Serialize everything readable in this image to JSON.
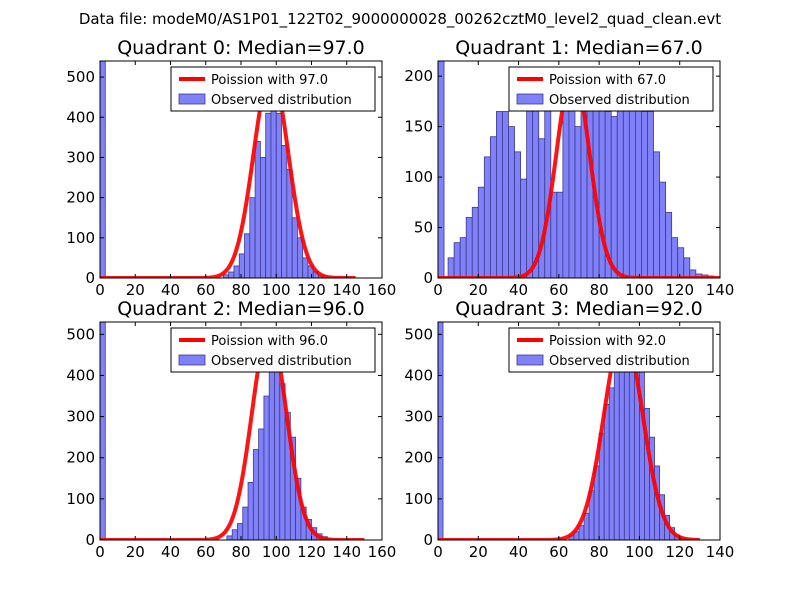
{
  "figure": {
    "title": "Data file: modeM0/AS1P01_122T02_9000000028_00262cztM0_level2_quad_clean.evt"
  },
  "colors": {
    "bar_fill": "#8080f8",
    "bar_edge": "#3b3b8f",
    "curve": "#ff0000",
    "background": "#ffffff"
  },
  "chart_data": [
    {
      "type": "bar",
      "title": "Quadrant 0: Median=97.0",
      "xlim": [
        0,
        160
      ],
      "ylim": [
        0,
        540
      ],
      "xticks": [
        0,
        20,
        40,
        60,
        80,
        100,
        120,
        140,
        160
      ],
      "yticks": [
        0,
        100,
        200,
        300,
        400,
        500
      ],
      "legend": {
        "placement": "top-right",
        "entries": [
          "Poission with 97.0",
          "Observed distribution"
        ]
      },
      "hist": {
        "bin_width": 3,
        "bins": [
          [
            0,
            540
          ],
          [
            70,
            8
          ],
          [
            73,
            15
          ],
          [
            76,
            30
          ],
          [
            79,
            60
          ],
          [
            82,
            110
          ],
          [
            85,
            200
          ],
          [
            88,
            340
          ],
          [
            91,
            300
          ],
          [
            94,
            410
          ],
          [
            97,
            420
          ],
          [
            100,
            410
          ],
          [
            103,
            330
          ],
          [
            106,
            270
          ],
          [
            109,
            150
          ],
          [
            112,
            100
          ],
          [
            115,
            50
          ],
          [
            118,
            30
          ],
          [
            121,
            15
          ],
          [
            124,
            5
          ]
        ]
      },
      "curve": {
        "label": "Poission with 97.0",
        "mean": 97.0,
        "peak": 512,
        "x_range": [
          0,
          145
        ]
      }
    },
    {
      "type": "bar",
      "title": "Quadrant 1: Median=67.0",
      "xlim": [
        0,
        140
      ],
      "ylim": [
        0,
        215
      ],
      "xticks": [
        0,
        20,
        40,
        60,
        80,
        100,
        120,
        140
      ],
      "yticks": [
        0,
        50,
        100,
        150,
        200
      ],
      "legend": {
        "placement": "top-right",
        "entries": [
          "Poission with 67.0",
          "Observed distribution"
        ]
      },
      "hist": {
        "bin_width": 3,
        "bins": [
          [
            0,
            215
          ],
          [
            5,
            20
          ],
          [
            8,
            35
          ],
          [
            11,
            40
          ],
          [
            14,
            60
          ],
          [
            17,
            70
          ],
          [
            20,
            90
          ],
          [
            23,
            120
          ],
          [
            26,
            140
          ],
          [
            29,
            165
          ],
          [
            32,
            165
          ],
          [
            35,
            150
          ],
          [
            38,
            125
          ],
          [
            41,
            98
          ],
          [
            44,
            175
          ],
          [
            47,
            180
          ],
          [
            50,
            138
          ],
          [
            53,
            180
          ],
          [
            56,
            85
          ],
          [
            59,
            85
          ],
          [
            62,
            185
          ],
          [
            65,
            180
          ],
          [
            68,
            150
          ],
          [
            71,
            180
          ],
          [
            74,
            195
          ],
          [
            77,
            178
          ],
          [
            80,
            168
          ],
          [
            83,
            165
          ],
          [
            86,
            160
          ],
          [
            89,
            185
          ],
          [
            92,
            195
          ],
          [
            95,
            205
          ],
          [
            98,
            190
          ],
          [
            101,
            165
          ],
          [
            104,
            165
          ],
          [
            107,
            125
          ],
          [
            110,
            95
          ],
          [
            113,
            65
          ],
          [
            116,
            40
          ],
          [
            119,
            30
          ],
          [
            122,
            20
          ],
          [
            125,
            8
          ],
          [
            128,
            4
          ],
          [
            131,
            3
          ],
          [
            134,
            2
          ]
        ]
      },
      "curve": {
        "label": "Poission with 67.0",
        "mean": 67.0,
        "peak": 205,
        "x_range": [
          0,
          140
        ]
      }
    },
    {
      "type": "bar",
      "title": "Quadrant 2: Median=96.0",
      "xlim": [
        0,
        160
      ],
      "ylim": [
        0,
        530
      ],
      "xticks": [
        0,
        20,
        40,
        60,
        80,
        100,
        120,
        140,
        160
      ],
      "yticks": [
        0,
        100,
        200,
        300,
        400,
        500
      ],
      "legend": {
        "placement": "top-right",
        "entries": [
          "Poission with 96.0",
          "Observed distribution"
        ]
      },
      "hist": {
        "bin_width": 3,
        "bins": [
          [
            0,
            530
          ],
          [
            72,
            10
          ],
          [
            75,
            25
          ],
          [
            78,
            40
          ],
          [
            81,
            80
          ],
          [
            84,
            140
          ],
          [
            87,
            220
          ],
          [
            90,
            270
          ],
          [
            93,
            350
          ],
          [
            96,
            460
          ],
          [
            99,
            430
          ],
          [
            102,
            380
          ],
          [
            105,
            310
          ],
          [
            108,
            250
          ],
          [
            111,
            150
          ],
          [
            114,
            80
          ],
          [
            117,
            50
          ],
          [
            120,
            30
          ],
          [
            123,
            15
          ],
          [
            126,
            8
          ],
          [
            129,
            3
          ]
        ]
      },
      "curve": {
        "label": "Poission with 96.0",
        "mean": 96.0,
        "peak": 510,
        "x_range": [
          0,
          150
        ]
      }
    },
    {
      "type": "bar",
      "title": "Quadrant 3: Median=92.0",
      "xlim": [
        0,
        140
      ],
      "ylim": [
        0,
        530
      ],
      "xticks": [
        0,
        20,
        40,
        60,
        80,
        100,
        120,
        140
      ],
      "yticks": [
        0,
        100,
        200,
        300,
        400,
        500
      ],
      "legend": {
        "placement": "top-right",
        "entries": [
          "Poission with 92.0",
          "Observed distribution"
        ]
      },
      "hist": {
        "bin_width": 2.5,
        "bins": [
          [
            0,
            530
          ],
          [
            65,
            10
          ],
          [
            67.5,
            20
          ],
          [
            70,
            35
          ],
          [
            72.5,
            65
          ],
          [
            75,
            120
          ],
          [
            77.5,
            180
          ],
          [
            80,
            260
          ],
          [
            82.5,
            330
          ],
          [
            85,
            370
          ],
          [
            87.5,
            410
          ],
          [
            90,
            440
          ],
          [
            92.5,
            470
          ],
          [
            95,
            445
          ],
          [
            97.5,
            420
          ],
          [
            100,
            440
          ],
          [
            102.5,
            320
          ],
          [
            105,
            250
          ],
          [
            107.5,
            180
          ],
          [
            110,
            110
          ],
          [
            112.5,
            60
          ],
          [
            115,
            30
          ],
          [
            117.5,
            12
          ],
          [
            120,
            5
          ],
          [
            122.5,
            2
          ]
        ]
      },
      "curve": {
        "label": "Poission with 92.0",
        "mean": 92.0,
        "peak": 505,
        "x_range": [
          0,
          130
        ]
      }
    }
  ]
}
